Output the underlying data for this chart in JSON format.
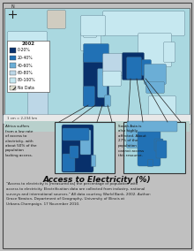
{
  "title": "Access to Electricity (%)",
  "footnote": "\"Access to electricity is [measured as] the percentage of population with\naccess to electricity. Electrification data are collected from industry, national\nsurveys and international sources.\" All data courtesy World Bank, 2002. Author:\nGrace Newton, Department of Geography, University of Illinois at\nUrbana-Champaign. 17 November 2010.",
  "legend_title": "2002",
  "legend_colors": [
    "#08306b",
    "#2171b5",
    "#6baed6",
    "#bdd7e7",
    "#c6e8f0"
  ],
  "legend_labels": [
    "0-20%",
    "20-40%",
    "40-60%",
    "60-80%",
    "80-100%"
  ],
  "africa_annotation": "Africa suffers\nfrom a low rate\nof access to\nelectricity, with\nabout 50% of the\npopulation\nlacking access.",
  "south_asia_annotation": "South Asia is\nalso highly\naffected. About\n27% of the\npopulation\ncannot access\nthis resource.",
  "bg_color": "#c0c0c0",
  "map_ocean": "#aad8e0",
  "map_border": "#555555",
  "scale_note": "1 cm = 2,234 km",
  "year": "2002",
  "continent_colors": {
    "north_america": "#c6e8f0",
    "south_america": "#bdd7e7",
    "europe": "#c6e8f0",
    "africa_dark": "#08306b",
    "africa_mid": "#2171b5",
    "africa_light": "#6baed6",
    "asia_light": "#c6e8f0",
    "asia_mid": "#6baed6",
    "south_asia": "#08306b",
    "india": "#2171b5",
    "australia": "#c6e8f0",
    "russia": "#c6e8f0",
    "nodata": "#d0ccc0"
  }
}
